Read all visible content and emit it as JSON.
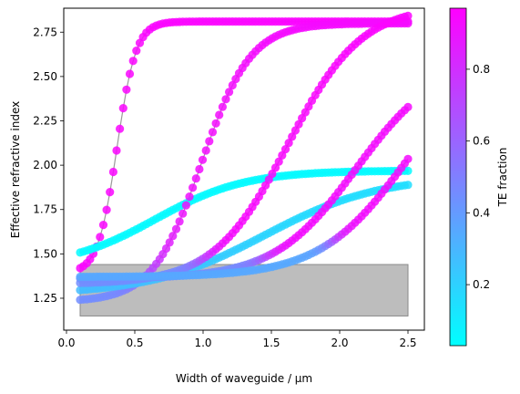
{
  "chart_data": {
    "type": "scatter",
    "title": "",
    "xlabel": "Width of waveguide / µm",
    "ylabel": "Effective refractive index",
    "xlim": [
      -0.02,
      2.62
    ],
    "ylim": [
      1.07,
      2.885
    ],
    "xticks": [
      0.0,
      0.5,
      1.0,
      1.5,
      2.0,
      2.5
    ],
    "xtick_labels": [
      "0.0",
      "0.5",
      "1.0",
      "1.5",
      "2.0",
      "2.5"
    ],
    "yticks": [
      1.25,
      1.5,
      1.75,
      2.0,
      2.25,
      2.5,
      2.75
    ],
    "ytick_labels": [
      "1.25",
      "1.50",
      "1.75",
      "2.00",
      "2.25",
      "2.50",
      "2.75"
    ],
    "colorbar": {
      "label": "TE fraction",
      "range": [
        0.03,
        0.97
      ],
      "ticks": [
        0.2,
        0.4,
        0.6,
        0.8
      ],
      "tick_labels": [
        "0.2",
        "0.4",
        "0.6",
        "0.8"
      ],
      "cmap_start": "#00ffff",
      "cmap_end": "#ff00ff"
    },
    "substrate_band": {
      "x": [
        0.1,
        2.5
      ],
      "y": [
        1.15,
        1.44
      ],
      "color": "#bdbdbd"
    },
    "series": [
      {
        "n_inf": 2.81,
        "n0": 1.39,
        "w0": 0.37,
        "s": 0.07,
        "tea": 0.95,
        "teb": 0.95,
        "tw": 0.5,
        "ts": 0.1
      },
      {
        "n_inf": 1.97,
        "n0": 1.42,
        "w0": 0.65,
        "s": 0.33,
        "tea": 0.05,
        "teb": 0.05,
        "tw": 1.0,
        "ts": 0.1
      },
      {
        "n_inf": 2.8,
        "n0": 1.23,
        "w0": 0.99,
        "s": 0.18,
        "tea": 0.45,
        "teb": 0.93,
        "tw": 0.62,
        "ts": 0.08
      },
      {
        "n_inf": 1.94,
        "n0": 1.27,
        "w0": 1.45,
        "s": 0.42,
        "tea": 0.28,
        "teb": 0.15,
        "tw": 1.2,
        "ts": 0.3
      },
      {
        "n_inf": 2.9,
        "n0": 1.33,
        "w0": 1.62,
        "s": 0.27,
        "tea": 0.45,
        "teb": 0.95,
        "tw": 1.0,
        "ts": 0.06
      },
      {
        "n_inf": 2.6,
        "n0": 1.36,
        "w0": 2.12,
        "s": 0.3,
        "tea": 0.45,
        "teb": 0.93,
        "tw": 1.45,
        "ts": 0.06
      },
      {
        "n_inf": 2.7,
        "n0": 1.37,
        "w0": 2.5,
        "s": 0.32,
        "tea": 0.35,
        "teb": 0.93,
        "tw": 1.95,
        "ts": 0.05
      }
    ]
  }
}
